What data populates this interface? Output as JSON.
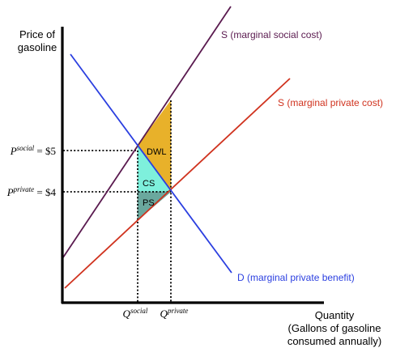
{
  "axes": {
    "y_label_line1": "Price of",
    "y_label_line2": "gasoline",
    "x_label_line1": "Quantity",
    "x_label_line2": "(Gallons of gasoline",
    "x_label_line3": "consumed annually)"
  },
  "curves": {
    "social_cost_label": "S (marginal social cost)",
    "private_cost_label": "S (marginal private cost)",
    "demand_label": "D (marginal private benefit)"
  },
  "areas": {
    "dwl_label": "DWL",
    "cs_label": "CS",
    "ps_label": "PS"
  },
  "price_ticks": {
    "social_letter": "P",
    "social_super": "social",
    "social_value": " = $5",
    "private_letter": "P",
    "private_super": "private",
    "private_value": " = $4"
  },
  "quantity_ticks": {
    "social_letter": "Q",
    "social_super": "social",
    "private_letter": "Q",
    "private_super": "private"
  },
  "colors": {
    "social_cost": "#5a1a4f",
    "private_cost": "#d0331f",
    "demand": "#2b3fe0",
    "dwl_fill": "#e8b12a",
    "cs_fill": "#7ef0dc",
    "ps_fill": "#6aa89e",
    "axis": "#000000"
  }
}
